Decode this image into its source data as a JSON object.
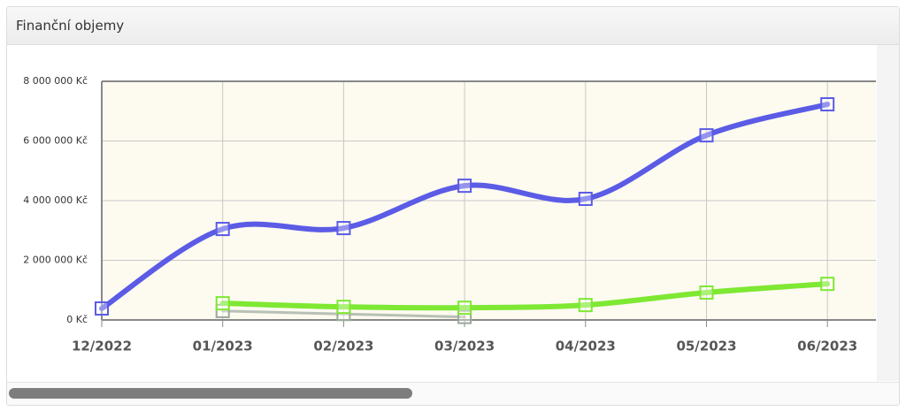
{
  "header": {
    "title": "Finanční objemy"
  },
  "chart_data": {
    "type": "line",
    "categories": [
      "12/2022",
      "01/2023",
      "02/2023",
      "03/2023",
      "04/2023",
      "05/2023",
      "06/2023"
    ],
    "series": [
      {
        "color": "#5b5be6",
        "values": [
          385000,
          3050000,
          3080000,
          4500000,
          4060000,
          6190000,
          7230000
        ]
      },
      {
        "color": "#7ee832",
        "values": [
          null,
          560000,
          440000,
          410000,
          500000,
          920000,
          1210000
        ]
      },
      {
        "color": "#9aa89a",
        "values": [
          null,
          300000,
          200000,
          100000,
          null,
          null,
          null
        ]
      }
    ],
    "ylim": [
      0,
      8000000
    ],
    "yticks": [
      {
        "value": 0,
        "label": "0 Kč"
      },
      {
        "value": 2000000,
        "label": "2 000 000 Kč"
      },
      {
        "value": 4000000,
        "label": "4 000 000 Kč"
      },
      {
        "value": 6000000,
        "label": "6 000 000 Kč"
      },
      {
        "value": 8000000,
        "label": "8 000 000 Kč"
      }
    ],
    "grid": true
  }
}
